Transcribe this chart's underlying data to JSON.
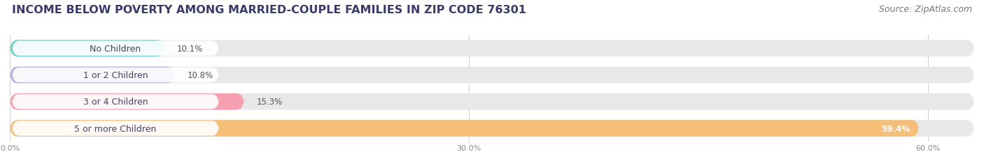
{
  "title": "INCOME BELOW POVERTY AMONG MARRIED-COUPLE FAMILIES IN ZIP CODE 76301",
  "source": "Source: ZipAtlas.com",
  "categories": [
    "No Children",
    "1 or 2 Children",
    "3 or 4 Children",
    "5 or more Children"
  ],
  "values": [
    10.1,
    10.8,
    15.3,
    59.4
  ],
  "bar_colors": [
    "#6ecfca",
    "#b3aedd",
    "#f4a0b0",
    "#f5bf78"
  ],
  "xlim": [
    0,
    63
  ],
  "xticks": [
    0.0,
    30.0,
    60.0
  ],
  "xtick_labels": [
    "0.0%",
    "30.0%",
    "60.0%"
  ],
  "background_color": "#ffffff",
  "bar_background_color": "#e8e8e8",
  "title_color": "#3a3a6a",
  "title_fontsize": 11.5,
  "source_fontsize": 9,
  "label_fontsize": 8.5,
  "category_fontsize": 9,
  "bar_height": 0.62
}
